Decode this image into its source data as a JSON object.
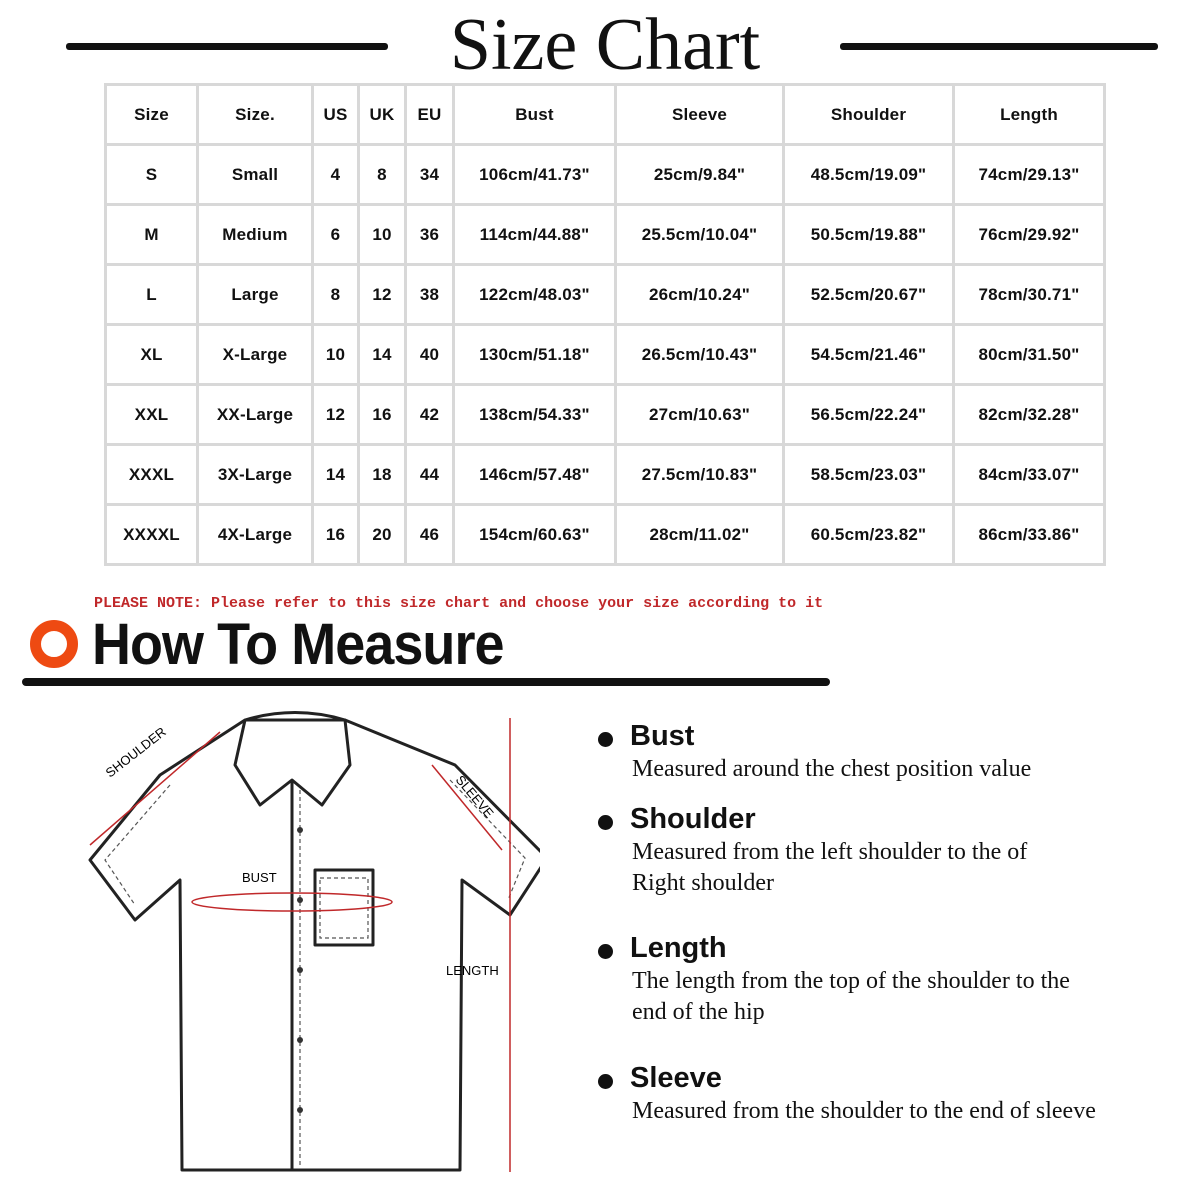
{
  "title": "Size Chart",
  "table": {
    "headers": [
      "Size",
      "Size.",
      "US",
      "UK",
      "EU",
      "Bust",
      "Sleeve",
      "Shoulder",
      "Length"
    ],
    "rows": [
      [
        "S",
        "Small",
        "4",
        "8",
        "34",
        "106cm/41.73\"",
        "25cm/9.84\"",
        "48.5cm/19.09\"",
        "74cm/29.13\""
      ],
      [
        "M",
        "Medium",
        "6",
        "10",
        "36",
        "114cm/44.88\"",
        "25.5cm/10.04\"",
        "50.5cm/19.88\"",
        "76cm/29.92\""
      ],
      [
        "L",
        "Large",
        "8",
        "12",
        "38",
        "122cm/48.03\"",
        "26cm/10.24\"",
        "52.5cm/20.67\"",
        "78cm/30.71\""
      ],
      [
        "XL",
        "X-Large",
        "10",
        "14",
        "40",
        "130cm/51.18\"",
        "26.5cm/10.43\"",
        "54.5cm/21.46\"",
        "80cm/31.50\""
      ],
      [
        "XXL",
        "XX-Large",
        "12",
        "16",
        "42",
        "138cm/54.33\"",
        "27cm/10.63\"",
        "56.5cm/22.24\"",
        "82cm/32.28\""
      ],
      [
        "XXXL",
        "3X-Large",
        "14",
        "18",
        "44",
        "146cm/57.48\"",
        "27.5cm/10.83\"",
        "58.5cm/23.03\"",
        "84cm/33.07\""
      ],
      [
        "XXXXL",
        "4X-Large",
        "16",
        "20",
        "46",
        "154cm/60.63\"",
        "28cm/11.02\"",
        "60.5cm/23.82\"",
        "86cm/33.86\""
      ]
    ]
  },
  "note": "PLEASE NOTE: Please refer to this size chart and choose your size according to it",
  "how_to_measure": {
    "title": "How To Measure",
    "diagram_labels": {
      "shoulder": "SHOULDER",
      "sleeve": "SLEEVE",
      "bust": "BUST",
      "length": "LENGTH"
    },
    "items": [
      {
        "heading": "Bust",
        "description": "Measured around the chest position value"
      },
      {
        "heading": "Shoulder",
        "description": "Measured from the left shoulder to the of Right shoulder"
      },
      {
        "heading": "Length",
        "description": "The length from the top of the shoulder to the end of the hip"
      },
      {
        "heading": "Sleeve",
        "description": "Measured from the shoulder to the end of sleeve"
      }
    ]
  },
  "colors": {
    "accent_red": "#c0282a",
    "ring_orange": "#ee4a12",
    "text": "#111111"
  }
}
